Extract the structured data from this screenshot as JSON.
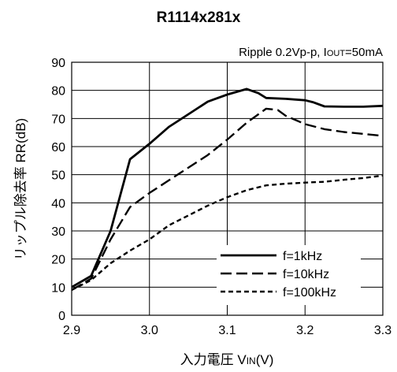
{
  "chart_data": {
    "type": "line",
    "title": "R1114x281x",
    "subtitle": "Ripple 0.2Vp-p, Iout=50mA",
    "xlabel": "入力電圧 VIN(V)",
    "ylabel": "リップル除去率 RR(dB)",
    "xlim": [
      2.9,
      3.3
    ],
    "ylim": [
      0,
      90
    ],
    "x_ticks": [
      "2.9",
      "3.0",
      "3.1",
      "3.2",
      "3.3"
    ],
    "y_ticks": [
      "0",
      "10",
      "20",
      "30",
      "40",
      "50",
      "60",
      "70",
      "80",
      "90"
    ],
    "grid": true,
    "legend_position": "bottom-right",
    "series": [
      {
        "name": "f=1kHz",
        "style": "solid",
        "x": [
          2.9,
          2.925,
          2.95,
          2.975,
          3.0,
          3.025,
          3.05,
          3.075,
          3.1,
          3.125,
          3.14,
          3.15,
          3.175,
          3.2,
          3.21,
          3.225,
          3.25,
          3.275,
          3.3
        ],
        "y": [
          10,
          14,
          30,
          55.5,
          61,
          67,
          71.5,
          76,
          78.5,
          80.5,
          79,
          77.3,
          77,
          76.5,
          75.8,
          74.3,
          74.2,
          74.2,
          74.5
        ]
      },
      {
        "name": "f=10kHz",
        "style": "dashed",
        "x": [
          2.9,
          2.925,
          2.95,
          2.975,
          3.0,
          3.025,
          3.05,
          3.075,
          3.1,
          3.125,
          3.15,
          3.165,
          3.175,
          3.2,
          3.225,
          3.25,
          3.275,
          3.3
        ],
        "y": [
          9,
          13,
          27,
          38.5,
          43.5,
          48,
          52.5,
          57,
          62.5,
          68.5,
          73.5,
          73,
          71,
          68,
          66.2,
          65.2,
          64.5,
          63.8
        ]
      },
      {
        "name": "f=100kHz",
        "style": "dotted",
        "x": [
          2.9,
          2.925,
          2.95,
          2.975,
          3.0,
          3.025,
          3.05,
          3.075,
          3.1,
          3.125,
          3.15,
          3.175,
          3.2,
          3.225,
          3.25,
          3.275,
          3.3
        ],
        "y": [
          9,
          12.5,
          18.5,
          23,
          27,
          32,
          35.5,
          39,
          42,
          44.5,
          46.2,
          46.8,
          47.2,
          47.5,
          48.2,
          48.8,
          49.7
        ]
      }
    ]
  }
}
